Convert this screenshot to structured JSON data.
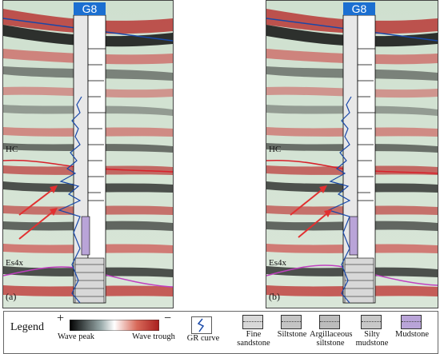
{
  "well_name": "G8",
  "horizons": {
    "hc": "HC",
    "es4x": "Es4x"
  },
  "panels": [
    {
      "id": "a",
      "label": "(a)"
    },
    {
      "id": "b",
      "label": "(b)"
    }
  ],
  "legend": {
    "title": "Legend",
    "plus_sign": "+",
    "minus_sign": "−",
    "wave_peak": "Wave peak",
    "wave_trough": "Wave trough",
    "gr_curve": "GR curve",
    "lithology": [
      {
        "name": "Fine sandstone",
        "line1": "Fine",
        "line2": "sandstone",
        "color": "#d8d8d8"
      },
      {
        "name": "Siltstone",
        "line1": "Siltstone",
        "line2": "",
        "color": "#c4c4c4"
      },
      {
        "name": "Argillaceous siltstone",
        "line1": "Argillaceous",
        "line2": "siltstone",
        "color": "#bcbcbc"
      },
      {
        "name": "Silty mudstone",
        "line1": "Silty",
        "line2": "mudstone",
        "color": "#c8c8c8"
      },
      {
        "name": "Mudstone",
        "line1": "Mudstone",
        "line2": "",
        "color": "#b9a4d8"
      }
    ]
  },
  "colors": {
    "peak": "#000000",
    "trough": "#a81e1e",
    "horizon_hc": "#d8202a",
    "horizon_es4x": "#c040c0",
    "gr_curve": "#1848a8",
    "arrow": "#e23030",
    "well_header": "#1b6fd1"
  }
}
